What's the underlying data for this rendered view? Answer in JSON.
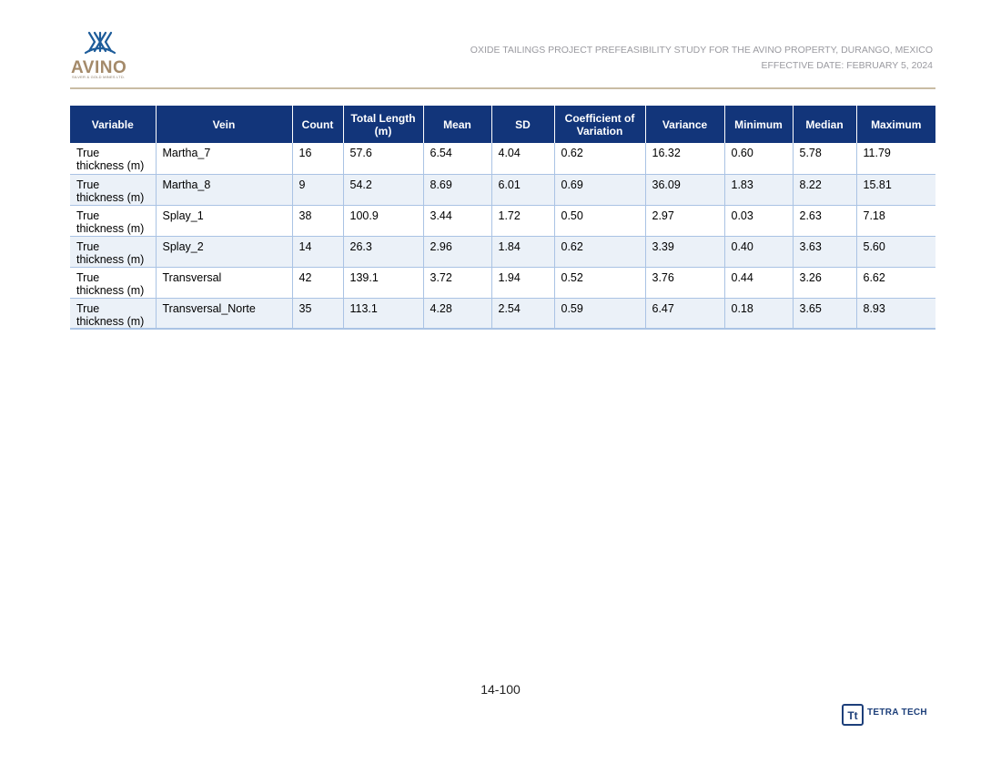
{
  "header": {
    "logo_text": "AVINO",
    "logo_subtext": "SILVER & GOLD MINES LTD.",
    "logo_icon": "avino-wave-icon",
    "title_line1": "OXIDE TAILINGS PROJECT PREFEASIBILITY STUDY FOR THE AVINO PROPERTY, DURANGO, MEXICO",
    "title_line2": "EFFECTIVE DATE: FEBRUARY 5, 2024"
  },
  "table": {
    "columns": [
      "Variable",
      "Vein",
      "Count",
      "Total Length (m)",
      "Mean",
      "SD",
      "Coefficient of Variation",
      "Variance",
      "Minimum",
      "Median",
      "Maximum"
    ],
    "rows": [
      [
        "True thickness (m)",
        "Martha_7",
        "16",
        "57.6",
        "6.54",
        "4.04",
        "0.62",
        "16.32",
        "0.60",
        "5.78",
        "11.79"
      ],
      [
        "True thickness (m)",
        "Martha_8",
        "9",
        "54.2",
        "8.69",
        "6.01",
        "0.69",
        "36.09",
        "1.83",
        "8.22",
        "15.81"
      ],
      [
        "True thickness (m)",
        "Splay_1",
        "38",
        "100.9",
        "3.44",
        "1.72",
        "0.50",
        "2.97",
        "0.03",
        "2.63",
        "7.18"
      ],
      [
        "True thickness (m)",
        "Splay_2",
        "14",
        "26.3",
        "2.96",
        "1.84",
        "0.62",
        "3.39",
        "0.40",
        "3.63",
        "5.60"
      ],
      [
        "True thickness (m)",
        "Transversal",
        "42",
        "139.1",
        "3.72",
        "1.94",
        "0.52",
        "3.76",
        "0.44",
        "3.26",
        "6.62"
      ],
      [
        "True thickness (m)",
        "Transversal_Norte",
        "35",
        "113.1",
        "4.28",
        "2.54",
        "0.59",
        "6.47",
        "0.18",
        "3.65",
        "8.93"
      ]
    ]
  },
  "footer": {
    "page_number": "14-100",
    "company_logo_text": "TETRA TECH",
    "company_logo_mark": "Tt"
  },
  "colors": {
    "header_fill": "#12357a",
    "alt_row_fill": "#ebf1f8",
    "grid_line": "#aac3e4",
    "rule": "#c9bca4",
    "logo_brown": "#a48a6a",
    "logo_blue": "#1d3f7a"
  }
}
